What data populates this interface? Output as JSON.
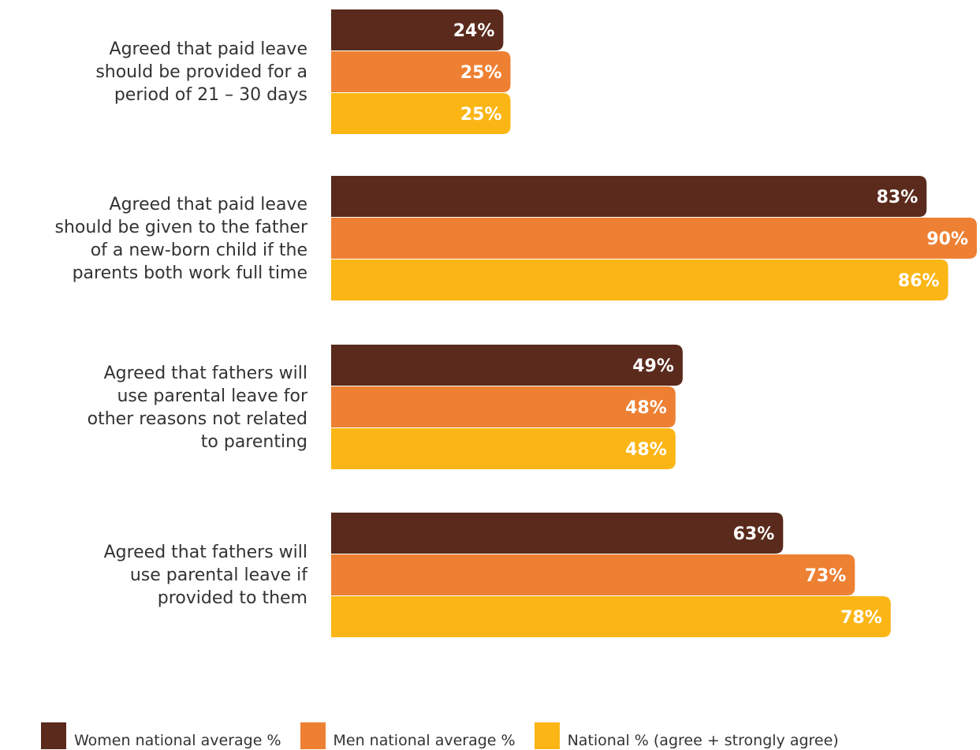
{
  "chart_data": {
    "type": "bar",
    "orientation": "horizontal",
    "categories": [
      "Agreed that paid leave should be provided for a period of 21 – 30 days",
      "Agreed that paid leave should be given to the father of a new-born child if the parents both work full time",
      "Agreed that fathers will use parental leave for other reasons not related to parenting",
      "Agreed that fathers will use parental leave if provided to them"
    ],
    "category_lines": [
      [
        "Agreed that paid leave",
        "should be provided for a",
        "period of 21 – 30 days"
      ],
      [
        "Agreed that paid leave",
        "should be given to the father",
        "of a new-born child if the",
        "parents both work full time"
      ],
      [
        "Agreed that fathers will",
        "use parental leave for",
        "other reasons not related",
        "to parenting"
      ],
      [
        "Agreed that fathers will",
        "use parental leave if",
        "provided to them"
      ]
    ],
    "series": [
      {
        "name": "Women national average %",
        "color": "#5a2a1c",
        "values": [
          24,
          83,
          49,
          63
        ]
      },
      {
        "name": "Men national average %",
        "color": "#ed8033",
        "values": [
          25,
          90,
          48,
          73
        ]
      },
      {
        "name": "National % (agree + strongly agree)",
        "color": "#fbb616",
        "values": [
          25,
          86,
          48,
          78
        ]
      }
    ],
    "value_format": "%",
    "xlim": [
      0,
      100
    ],
    "grid": false,
    "legend_position": "bottom"
  }
}
